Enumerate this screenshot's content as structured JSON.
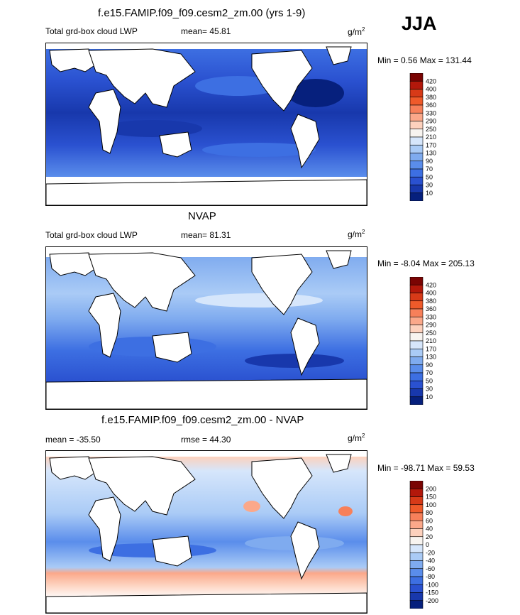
{
  "season": "JJA",
  "chart_data": [
    {
      "type": "heatmap",
      "title": "f.e15.FAMIP.f09_f09.cesm2_zm.00 (yrs 1-9)",
      "left_label": "Total grd-box cloud LWP",
      "center_label": "mean=  45.81",
      "units": "g/m",
      "units_exp": "2",
      "minmax": "Min =   0.56 Max = 131.44",
      "colorbar": {
        "labels": [
          "420",
          "400",
          "380",
          "360",
          "330",
          "290",
          "250",
          "210",
          "170",
          "130",
          "90",
          "70",
          "50",
          "30",
          "10"
        ],
        "colors": [
          "#7a0403",
          "#b3180b",
          "#d73a18",
          "#ef5a2a",
          "#f7805a",
          "#fba88a",
          "#fdd1bd",
          "#f8f4f0",
          "#d6e6fb",
          "#aacbf6",
          "#7fabef",
          "#5a8deb",
          "#3d6fe2",
          "#2a51d0",
          "#1838ac",
          "#06207d"
        ]
      }
    },
    {
      "type": "heatmap",
      "title": "NVAP",
      "left_label": "Total grd-box cloud LWP",
      "center_label": "mean=  81.31",
      "units": "g/m",
      "units_exp": "2",
      "minmax": "Min =  -8.04 Max = 205.13",
      "colorbar": {
        "labels": [
          "420",
          "400",
          "380",
          "360",
          "330",
          "290",
          "250",
          "210",
          "170",
          "130",
          "90",
          "70",
          "50",
          "30",
          "10"
        ],
        "colors": [
          "#7a0403",
          "#b3180b",
          "#d73a18",
          "#ef5a2a",
          "#f7805a",
          "#fba88a",
          "#fdd1bd",
          "#f8f4f0",
          "#d6e6fb",
          "#aacbf6",
          "#7fabef",
          "#5a8deb",
          "#3d6fe2",
          "#2a51d0",
          "#1838ac",
          "#06207d"
        ]
      }
    },
    {
      "type": "heatmap",
      "title": "f.e15.FAMIP.f09_f09.cesm2_zm.00 - NVAP",
      "left_label": "mean = -35.50",
      "center_label": "rmse =  44.30",
      "units": "g/m",
      "units_exp": "2",
      "minmax": "Min = -98.71 Max =  59.53",
      "colorbar": {
        "labels": [
          "200",
          "150",
          "100",
          "80",
          "60",
          "40",
          "20",
          "0",
          "-20",
          "-40",
          "-60",
          "-80",
          "-100",
          "-150",
          "-200"
        ],
        "colors": [
          "#7a0403",
          "#b3180b",
          "#d73a18",
          "#ef5a2a",
          "#f7805a",
          "#fba88a",
          "#fdd1bd",
          "#f8f4f0",
          "#d6e6fb",
          "#aacbf6",
          "#7fabef",
          "#5a8deb",
          "#3d6fe2",
          "#2a51d0",
          "#1838ac",
          "#06207d"
        ]
      }
    }
  ]
}
